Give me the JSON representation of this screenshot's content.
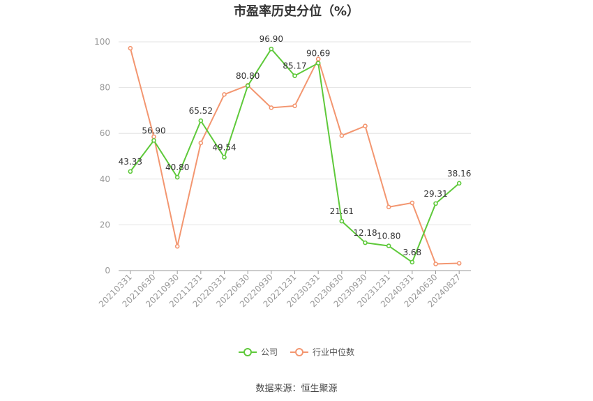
{
  "chart_data": {
    "type": "line",
    "title": "市盈率历史分位（%）",
    "categories": [
      "20210331",
      "20210630",
      "20210930",
      "20211231",
      "20220331",
      "20220630",
      "20220930",
      "20221231",
      "20230331",
      "20230630",
      "20230930",
      "20231231",
      "20240331",
      "20240630",
      "20240827"
    ],
    "ylim": [
      0,
      100
    ],
    "yticks": [
      0,
      20,
      40,
      60,
      80,
      100
    ],
    "grid": true,
    "legend_position": "bottom",
    "series": [
      {
        "name": "公司",
        "color": "#5ec93a",
        "values": [
          43.33,
          56.9,
          40.8,
          65.52,
          49.54,
          80.8,
          96.9,
          85.17,
          90.69,
          21.61,
          12.18,
          10.8,
          3.68,
          29.31,
          38.16
        ],
        "labels": [
          "43.33",
          "56.90",
          "40.80",
          "65.52",
          "49.54",
          "80.80",
          "96.90",
          "85.17",
          "90.69",
          "21.61",
          "12.18",
          "10.80",
          "3.68",
          "29.31",
          "38.16"
        ]
      },
      {
        "name": "行业中位数",
        "color": "#f39670",
        "values": [
          97.2,
          58.5,
          10.6,
          55.8,
          77.0,
          81.0,
          71.2,
          72.0,
          92.5,
          59.0,
          63.2,
          27.8,
          29.6,
          2.9,
          3.2
        ]
      }
    ]
  },
  "source": "数据来源：恒生聚源"
}
